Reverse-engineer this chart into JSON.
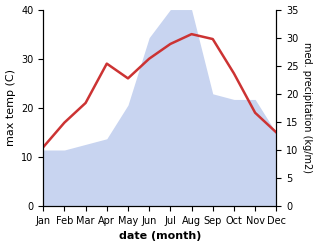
{
  "months": [
    "Jan",
    "Feb",
    "Mar",
    "Apr",
    "May",
    "Jun",
    "Jul",
    "Aug",
    "Sep",
    "Oct",
    "Nov",
    "Dec"
  ],
  "temp": [
    12,
    17,
    21,
    29,
    26,
    30,
    33,
    35,
    34,
    27,
    19,
    15
  ],
  "precip": [
    10,
    10,
    11,
    12,
    18,
    30,
    35,
    35,
    20,
    19,
    19,
    13
  ],
  "temp_color": "#cc3333",
  "precip_color_fill": "#c8d4f0",
  "left_ylim": [
    0,
    40
  ],
  "right_ylim": [
    0,
    35
  ],
  "left_yticks": [
    0,
    10,
    20,
    30,
    40
  ],
  "right_yticks": [
    0,
    5,
    10,
    15,
    20,
    25,
    30,
    35
  ],
  "xlabel": "date (month)",
  "left_ylabel": "max temp (C)",
  "right_ylabel": "med. precipitation (kg/m2)",
  "background_color": "#ffffff",
  "label_fontsize": 8,
  "tick_fontsize": 7
}
